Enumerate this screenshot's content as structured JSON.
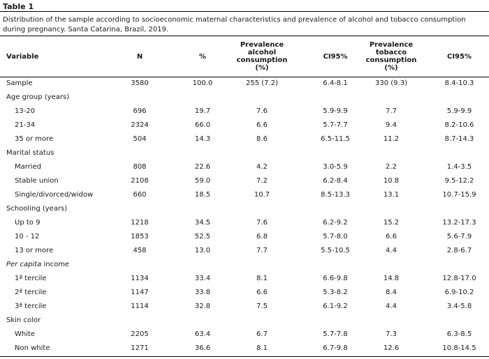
{
  "table": {
    "title": "Table 1",
    "caption": "Distribution of the sample according to socioeconomic maternal characteristics and prevalence of alcohol and tobacco consumption during pregnancy. Santa Catarina, Brazil, 2019.",
    "headers": {
      "variable": "Variable",
      "n": "N",
      "pct": "%",
      "prev_alcohol": [
        "Prevalence",
        "alcohol",
        "consumption",
        "(%)"
      ],
      "ci_alcohol": "CI95%",
      "prev_tobacco": [
        "Prevalence",
        "tobacco",
        "consumption",
        "(%)"
      ],
      "ci_tobacco": "CI95%"
    },
    "rows": [
      {
        "type": "data",
        "indent": false,
        "label": "Sample",
        "n": "3580",
        "pct": "100.0",
        "prev_alcohol": "255 (7.2)",
        "ci_alcohol": "6.4-8.1",
        "prev_tobacco": "330 (9.3)",
        "ci_tobacco": "8.4-10.3"
      },
      {
        "type": "group",
        "label": "Age group (years)"
      },
      {
        "type": "data",
        "indent": true,
        "label": "13-20",
        "n": "696",
        "pct": "19.7",
        "prev_alcohol": "7.6",
        "ci_alcohol": "5.9-9.9",
        "prev_tobacco": "7.7",
        "ci_tobacco": "5.9-9.9"
      },
      {
        "type": "data",
        "indent": true,
        "label": "21-34",
        "n": "2324",
        "pct": "66.0",
        "prev_alcohol": "6.6",
        "ci_alcohol": "5.7-7.7",
        "prev_tobacco": "9.4",
        "ci_tobacco": "8.2-10.6"
      },
      {
        "type": "data",
        "indent": true,
        "label": "35 or more",
        "n": "504",
        "pct": "14.3",
        "prev_alcohol": "8.6",
        "ci_alcohol": "6.5-11.5",
        "prev_tobacco": "11.2",
        "ci_tobacco": "8.7-14.3"
      },
      {
        "type": "group",
        "label": "Marital status"
      },
      {
        "type": "data",
        "indent": true,
        "label": "Married",
        "n": "808",
        "pct": "22.6",
        "prev_alcohol": "4.2",
        "ci_alcohol": "3.0-5.9",
        "prev_tobacco": "2.2",
        "ci_tobacco": "1.4-3.5"
      },
      {
        "type": "data",
        "indent": true,
        "label": "Stable union",
        "n": "2108",
        "pct": "59.0",
        "prev_alcohol": "7.2",
        "ci_alcohol": "6.2-8.4",
        "prev_tobacco": "10.8",
        "ci_tobacco": "9.5-12.2"
      },
      {
        "type": "data",
        "indent": true,
        "label": "Single/divorced/widow",
        "n": "660",
        "pct": "18.5",
        "prev_alcohol": "10.7",
        "ci_alcohol": "8.5-13.3",
        "prev_tobacco": "13.1",
        "ci_tobacco": "10.7-15.9"
      },
      {
        "type": "group",
        "label": "Schooling (years)"
      },
      {
        "type": "data",
        "indent": true,
        "label": "Up to 9",
        "n": "1218",
        "pct": "34.5",
        "prev_alcohol": "7.6",
        "ci_alcohol": "6.2-9.2",
        "prev_tobacco": "15.2",
        "ci_tobacco": "13.2-17.3"
      },
      {
        "type": "data",
        "indent": true,
        "label": "10 - 12",
        "n": "1853",
        "pct": "52.5",
        "prev_alcohol": "6.8",
        "ci_alcohol": "5.7-8.0",
        "prev_tobacco": "6.6",
        "ci_tobacco": "5.6-7.9"
      },
      {
        "type": "data",
        "indent": true,
        "label": "13 or more",
        "n": "458",
        "pct": "13.0",
        "prev_alcohol": "7.7",
        "ci_alcohol": "5.5-10.5",
        "prev_tobacco": "4.4",
        "ci_tobacco": "2.8-6.7"
      },
      {
        "type": "group",
        "label_italic": "Per capita",
        "label": " income"
      },
      {
        "type": "data",
        "indent": true,
        "label": "1ª tercile",
        "n": "1134",
        "pct": "33.4",
        "prev_alcohol": "8.1",
        "ci_alcohol": "6.6-9.8",
        "prev_tobacco": "14.8",
        "ci_tobacco": "12.8-17.0"
      },
      {
        "type": "data",
        "indent": true,
        "label": "2ª tercile",
        "n": "1147",
        "pct": "33.8",
        "prev_alcohol": "6.6",
        "ci_alcohol": "5.3-8.2",
        "prev_tobacco": "8.4",
        "ci_tobacco": "6.9-10.2"
      },
      {
        "type": "data",
        "indent": true,
        "label": "3ª tercile",
        "n": "1114",
        "pct": "32.8",
        "prev_alcohol": "7.5",
        "ci_alcohol": "6.1-9.2",
        "prev_tobacco": "4.4",
        "ci_tobacco": "3.4-5.8"
      },
      {
        "type": "group",
        "label": "Skin color"
      },
      {
        "type": "data",
        "indent": true,
        "label": "White",
        "n": "2205",
        "pct": "63.4",
        "prev_alcohol": "6.7",
        "ci_alcohol": "5.7-7.8",
        "prev_tobacco": "7.3",
        "ci_tobacco": "6.3-8.5"
      },
      {
        "type": "data",
        "indent": true,
        "label": "Non white",
        "n": "1271",
        "pct": "36.6",
        "prev_alcohol": "8.1",
        "ci_alcohol": "6.7-9.8",
        "prev_tobacco": "12.6",
        "ci_tobacco": "10.8-14.5"
      }
    ]
  }
}
